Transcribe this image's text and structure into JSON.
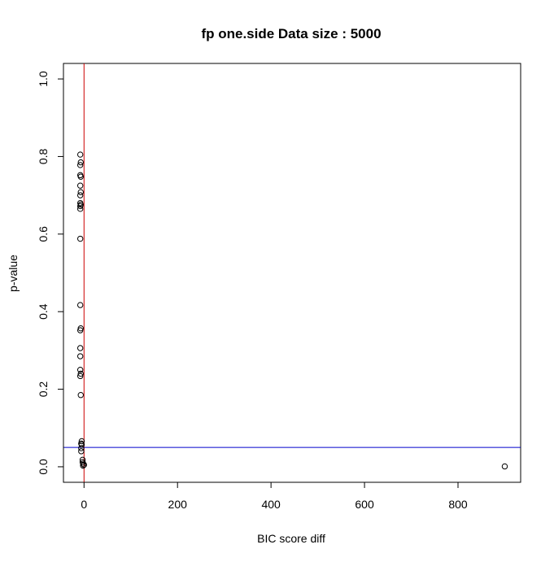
{
  "chart_data": {
    "type": "scatter",
    "title": "fp one.side Data size :  5000",
    "xlabel": "BIC score diff",
    "ylabel": "p-value",
    "xlim": [
      -44,
      934
    ],
    "ylim": [
      -0.04,
      1.04
    ],
    "x_ticks": [
      0,
      200,
      400,
      600,
      800
    ],
    "x_tick_labels": [
      "0",
      "200",
      "400",
      "600",
      "800"
    ],
    "y_ticks": [
      0.0,
      0.2,
      0.4,
      0.6,
      0.8,
      1.0
    ],
    "y_tick_labels": [
      "0.0",
      "0.2",
      "0.4",
      "0.6",
      "0.8",
      "1.0"
    ],
    "grid": false,
    "series": [
      {
        "marker": "open-circle",
        "color": "#000000",
        "points": [
          [
            -8,
            0.805
          ],
          [
            -7,
            0.785
          ],
          [
            -8,
            0.778
          ],
          [
            -8,
            0.752
          ],
          [
            -7,
            0.748
          ],
          [
            -8,
            0.725
          ],
          [
            -7,
            0.708
          ],
          [
            -8,
            0.7
          ],
          [
            -8,
            0.68
          ],
          [
            -7,
            0.676
          ],
          [
            -8,
            0.672
          ],
          [
            -8,
            0.665
          ],
          [
            -8,
            0.588
          ],
          [
            -8,
            0.417
          ],
          [
            -7,
            0.357
          ],
          [
            -8,
            0.352
          ],
          [
            -8,
            0.306
          ],
          [
            -8,
            0.285
          ],
          [
            -8,
            0.25
          ],
          [
            -7,
            0.24
          ],
          [
            -8,
            0.234
          ],
          [
            -7,
            0.185
          ],
          [
            -5,
            0.066
          ],
          [
            -6,
            0.06
          ],
          [
            -5,
            0.057
          ],
          [
            -6,
            0.048
          ],
          [
            -6,
            0.04
          ],
          [
            -3,
            0.018
          ],
          [
            -3,
            0.012
          ],
          [
            -2,
            0.008
          ],
          [
            0,
            0.005
          ],
          [
            -2,
            0.003
          ],
          [
            900,
            0.001
          ]
        ]
      }
    ],
    "reference_lines": [
      {
        "orientation": "vertical",
        "value": 0,
        "color": "#cc0000"
      },
      {
        "orientation": "horizontal",
        "value": 0.05,
        "color": "#0000cc"
      }
    ]
  }
}
